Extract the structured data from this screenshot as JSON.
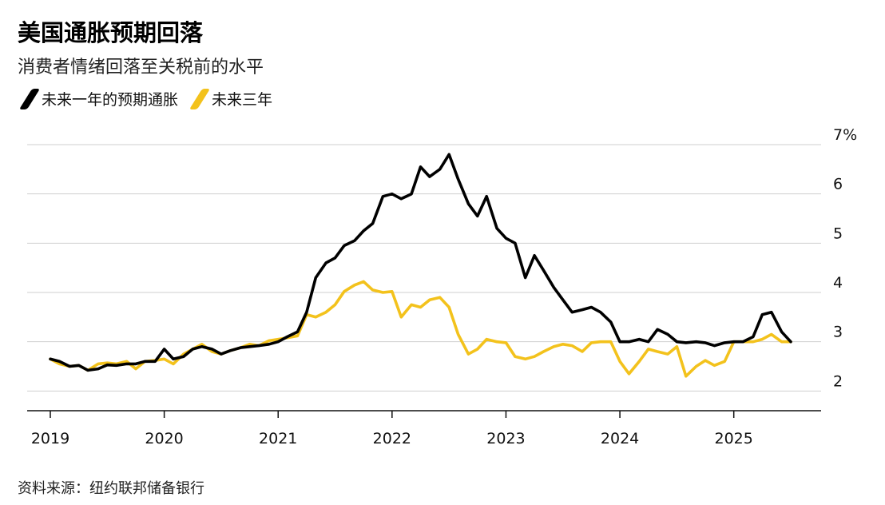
{
  "title": "美国通胀预期回落",
  "subtitle": "消费者情绪回落至关税前的水平",
  "source": "资料来源：纽约联邦储备银行",
  "chart_data": {
    "type": "line",
    "ylim": [
      1.6,
      7.0
    ],
    "xlim": [
      2019.0,
      2025.75
    ],
    "y_ticks": [
      {
        "value": 7,
        "label": "7%"
      },
      {
        "value": 6,
        "label": "6"
      },
      {
        "value": 5,
        "label": "5"
      },
      {
        "value": 4,
        "label": "4"
      },
      {
        "value": 3,
        "label": "3"
      },
      {
        "value": 2,
        "label": "2"
      }
    ],
    "x_ticks": [
      {
        "value": 2019,
        "label": "2019"
      },
      {
        "value": 2020,
        "label": "2020"
      },
      {
        "value": 2021,
        "label": "2021"
      },
      {
        "value": 2022,
        "label": "2022"
      },
      {
        "value": 2023,
        "label": "2023"
      },
      {
        "value": 2024,
        "label": "2024"
      },
      {
        "value": 2025,
        "label": "2025"
      }
    ],
    "grid": true,
    "legend_position": "top-left",
    "series": [
      {
        "name": "未来一年的预期通胀",
        "color": "#000000",
        "points": [
          [
            2019.0,
            2.65
          ],
          [
            2019.08,
            2.6
          ],
          [
            2019.17,
            2.5
          ],
          [
            2019.25,
            2.52
          ],
          [
            2019.33,
            2.42
          ],
          [
            2019.42,
            2.45
          ],
          [
            2019.5,
            2.53
          ],
          [
            2019.58,
            2.52
          ],
          [
            2019.67,
            2.55
          ],
          [
            2019.75,
            2.55
          ],
          [
            2019.83,
            2.6
          ],
          [
            2019.92,
            2.6
          ],
          [
            2020.0,
            2.85
          ],
          [
            2020.08,
            2.65
          ],
          [
            2020.17,
            2.7
          ],
          [
            2020.25,
            2.85
          ],
          [
            2020.33,
            2.9
          ],
          [
            2020.42,
            2.85
          ],
          [
            2020.5,
            2.75
          ],
          [
            2020.58,
            2.82
          ],
          [
            2020.67,
            2.88
          ],
          [
            2020.75,
            2.9
          ],
          [
            2020.83,
            2.92
          ],
          [
            2020.92,
            2.95
          ],
          [
            2021.0,
            3.0
          ],
          [
            2021.08,
            3.1
          ],
          [
            2021.17,
            3.2
          ],
          [
            2021.25,
            3.6
          ],
          [
            2021.33,
            4.3
          ],
          [
            2021.42,
            4.6
          ],
          [
            2021.5,
            4.7
          ],
          [
            2021.58,
            4.95
          ],
          [
            2021.67,
            5.05
          ],
          [
            2021.75,
            5.25
          ],
          [
            2021.83,
            5.4
          ],
          [
            2021.92,
            5.95
          ],
          [
            2022.0,
            6.0
          ],
          [
            2022.08,
            5.9
          ],
          [
            2022.17,
            6.0
          ],
          [
            2022.25,
            6.55
          ],
          [
            2022.33,
            6.35
          ],
          [
            2022.42,
            6.5
          ],
          [
            2022.5,
            6.8
          ],
          [
            2022.58,
            6.3
          ],
          [
            2022.67,
            5.8
          ],
          [
            2022.75,
            5.55
          ],
          [
            2022.83,
            5.95
          ],
          [
            2022.92,
            5.3
          ],
          [
            2023.0,
            5.1
          ],
          [
            2023.08,
            5.0
          ],
          [
            2023.17,
            4.3
          ],
          [
            2023.25,
            4.75
          ],
          [
            2023.33,
            4.45
          ],
          [
            2023.42,
            4.1
          ],
          [
            2023.5,
            3.85
          ],
          [
            2023.58,
            3.6
          ],
          [
            2023.67,
            3.65
          ],
          [
            2023.75,
            3.7
          ],
          [
            2023.83,
            3.6
          ],
          [
            2023.92,
            3.4
          ],
          [
            2024.0,
            3.0
          ],
          [
            2024.08,
            3.0
          ],
          [
            2024.17,
            3.05
          ],
          [
            2024.25,
            3.0
          ],
          [
            2024.33,
            3.25
          ],
          [
            2024.42,
            3.15
          ],
          [
            2024.5,
            3.0
          ],
          [
            2024.58,
            2.98
          ],
          [
            2024.67,
            3.0
          ],
          [
            2024.75,
            2.98
          ],
          [
            2024.83,
            2.92
          ],
          [
            2024.92,
            2.98
          ],
          [
            2025.0,
            3.0
          ],
          [
            2025.08,
            3.0
          ],
          [
            2025.17,
            3.1
          ],
          [
            2025.25,
            3.55
          ],
          [
            2025.33,
            3.6
          ],
          [
            2025.42,
            3.2
          ],
          [
            2025.5,
            3.0
          ]
        ]
      },
      {
        "name": "未来三年",
        "color": "#f3c21c",
        "points": [
          [
            2019.0,
            2.65
          ],
          [
            2019.08,
            2.55
          ],
          [
            2019.17,
            2.5
          ],
          [
            2019.25,
            2.52
          ],
          [
            2019.33,
            2.42
          ],
          [
            2019.42,
            2.55
          ],
          [
            2019.5,
            2.57
          ],
          [
            2019.58,
            2.55
          ],
          [
            2019.67,
            2.6
          ],
          [
            2019.75,
            2.45
          ],
          [
            2019.83,
            2.6
          ],
          [
            2019.92,
            2.62
          ],
          [
            2020.0,
            2.65
          ],
          [
            2020.08,
            2.55
          ],
          [
            2020.17,
            2.75
          ],
          [
            2020.25,
            2.85
          ],
          [
            2020.33,
            2.95
          ],
          [
            2020.42,
            2.8
          ],
          [
            2020.5,
            2.75
          ],
          [
            2020.58,
            2.82
          ],
          [
            2020.67,
            2.88
          ],
          [
            2020.75,
            2.95
          ],
          [
            2020.83,
            2.92
          ],
          [
            2020.92,
            3.02
          ],
          [
            2021.0,
            3.05
          ],
          [
            2021.08,
            3.08
          ],
          [
            2021.17,
            3.12
          ],
          [
            2021.25,
            3.55
          ],
          [
            2021.33,
            3.5
          ],
          [
            2021.42,
            3.6
          ],
          [
            2021.5,
            3.75
          ],
          [
            2021.58,
            4.02
          ],
          [
            2021.67,
            4.15
          ],
          [
            2021.75,
            4.22
          ],
          [
            2021.83,
            4.05
          ],
          [
            2021.92,
            4.0
          ],
          [
            2022.0,
            4.02
          ],
          [
            2022.08,
            3.5
          ],
          [
            2022.17,
            3.75
          ],
          [
            2022.25,
            3.7
          ],
          [
            2022.33,
            3.85
          ],
          [
            2022.42,
            3.9
          ],
          [
            2022.5,
            3.7
          ],
          [
            2022.58,
            3.15
          ],
          [
            2022.67,
            2.75
          ],
          [
            2022.75,
            2.85
          ],
          [
            2022.83,
            3.05
          ],
          [
            2022.92,
            3.0
          ],
          [
            2023.0,
            2.98
          ],
          [
            2023.08,
            2.7
          ],
          [
            2023.17,
            2.65
          ],
          [
            2023.25,
            2.7
          ],
          [
            2023.33,
            2.8
          ],
          [
            2023.42,
            2.9
          ],
          [
            2023.5,
            2.95
          ],
          [
            2023.58,
            2.92
          ],
          [
            2023.67,
            2.8
          ],
          [
            2023.75,
            2.98
          ],
          [
            2023.83,
            3.0
          ],
          [
            2023.92,
            3.0
          ],
          [
            2024.0,
            2.6
          ],
          [
            2024.08,
            2.35
          ],
          [
            2024.17,
            2.6
          ],
          [
            2024.25,
            2.85
          ],
          [
            2024.33,
            2.8
          ],
          [
            2024.42,
            2.75
          ],
          [
            2024.5,
            2.9
          ],
          [
            2024.58,
            2.3
          ],
          [
            2024.67,
            2.5
          ],
          [
            2024.75,
            2.62
          ],
          [
            2024.83,
            2.52
          ],
          [
            2024.92,
            2.6
          ],
          [
            2025.0,
            3.0
          ],
          [
            2025.08,
            3.0
          ],
          [
            2025.17,
            3.0
          ],
          [
            2025.25,
            3.05
          ],
          [
            2025.33,
            3.15
          ],
          [
            2025.42,
            3.0
          ],
          [
            2025.5,
            3.0
          ]
        ]
      }
    ]
  }
}
